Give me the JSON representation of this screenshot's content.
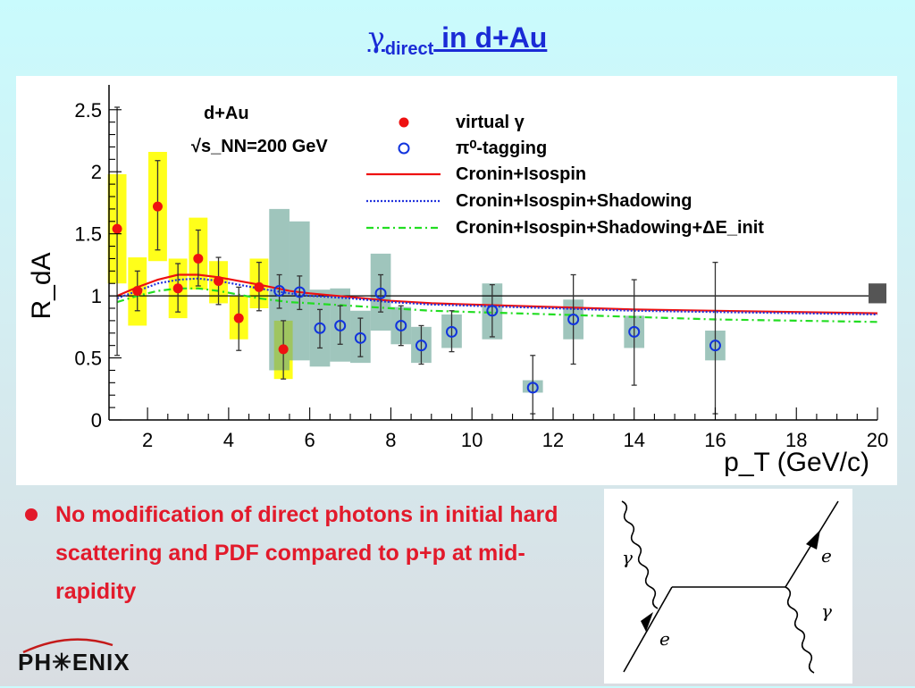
{
  "title": {
    "gamma": "γ",
    "sub": "direct",
    "rest": " in d+Au"
  },
  "bullet": {
    "text": "No modification of direct photons in initial hard scattering and PDF compared to p+p at mid-rapidity"
  },
  "logo": {
    "text": "PH✳ENIX"
  },
  "feynman": {
    "labels": [
      "γ",
      "e",
      "e",
      "γ"
    ]
  },
  "colors": {
    "title": "#1a2bd6",
    "bullet": "#e21a2b",
    "virtual": "#ee1111",
    "pi0": "#1133dd",
    "yellow_box": "#ffff1a",
    "teal_box": "#5f9f8f"
  },
  "chart_data": {
    "type": "scatter",
    "xlim": [
      1,
      20
    ],
    "ylim": [
      0,
      2.7
    ],
    "x_ticks": [
      2,
      4,
      6,
      8,
      10,
      12,
      14,
      16,
      18,
      20
    ],
    "y_ticks": [
      0,
      0.5,
      1,
      1.5,
      2,
      2.5
    ],
    "x_tick_labels": [
      "2",
      "4",
      "6",
      "8",
      "10",
      "12",
      "14",
      "16",
      "18",
      "20"
    ],
    "y_tick_labels": [
      "0",
      "0.5",
      "1",
      "1.5",
      "2",
      "2.5"
    ],
    "xlabel": "p_T (GeV/c)",
    "ylabel": "R_dA",
    "annotation": {
      "line1": "d+Au",
      "line2": "√s_NN=200 GeV"
    },
    "legend": {
      "virtual": "virtual γ",
      "pi0": "π⁰-tagging",
      "cronin": "Cronin+Isospin",
      "shadow": "Cronin+Isospin+Shadowing",
      "eloss": "Cronin+Isospin+Shadowing+ΔE_init"
    },
    "reference_line": 1.0,
    "series": [
      {
        "name": "virtual γ",
        "marker": "filled-circle",
        "points": [
          {
            "x": 1.25,
            "y": 1.54,
            "stat": [
              0.52,
              2.52
            ],
            "sys": [
              1.1,
              1.98
            ]
          },
          {
            "x": 1.75,
            "y": 1.04,
            "stat": [
              0.88,
              1.2
            ],
            "sys": [
              0.76,
              1.31
            ]
          },
          {
            "x": 2.25,
            "y": 1.72,
            "stat": [
              1.37,
              2.09
            ],
            "sys": [
              1.28,
              2.16
            ]
          },
          {
            "x": 2.75,
            "y": 1.06,
            "stat": [
              0.87,
              1.26
            ],
            "sys": [
              0.82,
              1.3
            ]
          },
          {
            "x": 3.25,
            "y": 1.3,
            "stat": [
              1.08,
              1.53
            ],
            "sys": [
              1.05,
              1.63
            ]
          },
          {
            "x": 3.75,
            "y": 1.12,
            "stat": [
              0.93,
              1.31
            ],
            "sys": [
              0.94,
              1.28
            ]
          },
          {
            "x": 4.25,
            "y": 0.82,
            "stat": [
              0.56,
              1.07
            ],
            "sys": [
              0.65,
              1.0
            ]
          },
          {
            "x": 4.75,
            "y": 1.07,
            "stat": [
              0.88,
              1.27
            ],
            "sys": [
              0.9,
              1.3
            ]
          },
          {
            "x": 5.35,
            "y": 0.57,
            "stat": [
              0.33,
              0.8
            ],
            "sys": [
              0.33,
              0.8
            ]
          }
        ]
      },
      {
        "name": "π⁰-tagging",
        "marker": "open-circle",
        "points": [
          {
            "x": 5.25,
            "y": 1.04,
            "stat": [
              0.9,
              1.17
            ],
            "sys": [
              0.4,
              1.7
            ]
          },
          {
            "x": 5.75,
            "y": 1.03,
            "stat": [
              0.89,
              1.16
            ],
            "sys": [
              0.48,
              1.6
            ]
          },
          {
            "x": 6.25,
            "y": 0.74,
            "stat": [
              0.58,
              0.89
            ],
            "sys": [
              0.43,
              1.05
            ]
          },
          {
            "x": 6.75,
            "y": 0.76,
            "stat": [
              0.61,
              0.92
            ],
            "sys": [
              0.47,
              1.06
            ]
          },
          {
            "x": 7.25,
            "y": 0.66,
            "stat": [
              0.51,
              0.82
            ],
            "sys": [
              0.46,
              0.88
            ]
          },
          {
            "x": 7.75,
            "y": 1.02,
            "stat": [
              0.87,
              1.17
            ],
            "sys": [
              0.72,
              1.34
            ]
          },
          {
            "x": 8.25,
            "y": 0.76,
            "stat": [
              0.6,
              0.92
            ],
            "sys": [
              0.61,
              0.91
            ]
          },
          {
            "x": 8.75,
            "y": 0.6,
            "stat": [
              0.45,
              0.76
            ],
            "sys": [
              0.46,
              0.75
            ]
          },
          {
            "x": 9.5,
            "y": 0.71,
            "stat": [
              0.55,
              0.88
            ],
            "sys": [
              0.58,
              0.85
            ]
          },
          {
            "x": 10.5,
            "y": 0.88,
            "stat": [
              0.67,
              1.09
            ],
            "sys": [
              0.65,
              1.1
            ]
          },
          {
            "x": 11.5,
            "y": 0.26,
            "stat": [
              0.05,
              0.52
            ],
            "sys": [
              0.22,
              0.32
            ]
          },
          {
            "x": 12.5,
            "y": 0.81,
            "stat": [
              0.45,
              1.17
            ],
            "sys": [
              0.65,
              0.97
            ]
          },
          {
            "x": 14.0,
            "y": 0.71,
            "stat": [
              0.28,
              1.13
            ],
            "sys": [
              0.58,
              0.84
            ]
          },
          {
            "x": 16.0,
            "y": 0.6,
            "stat": [
              0.05,
              1.27
            ],
            "sys": [
              0.48,
              0.72
            ]
          }
        ]
      }
    ],
    "curves": [
      {
        "name": "Cronin+Isospin",
        "color": "#ee1111",
        "style": "solid",
        "x": [
          1.25,
          1.75,
          2.25,
          2.75,
          3.25,
          3.75,
          4.25,
          4.75,
          5.5,
          6,
          7,
          8,
          9,
          10,
          12,
          14,
          16,
          18,
          20
        ],
        "y": [
          1.0,
          1.07,
          1.13,
          1.17,
          1.17,
          1.15,
          1.12,
          1.09,
          1.04,
          1.02,
          0.99,
          0.96,
          0.94,
          0.93,
          0.91,
          0.89,
          0.88,
          0.87,
          0.86
        ]
      },
      {
        "name": "Cronin+Isospin+Shadowing",
        "color": "#2233dd",
        "style": "dotted",
        "x": [
          1.25,
          1.75,
          2.25,
          2.75,
          3.25,
          3.75,
          4.25,
          4.75,
          5.5,
          6,
          7,
          8,
          9,
          10,
          12,
          14,
          16,
          18,
          20
        ],
        "y": [
          0.98,
          1.04,
          1.1,
          1.13,
          1.14,
          1.12,
          1.09,
          1.06,
          1.02,
          1.0,
          0.98,
          0.95,
          0.93,
          0.92,
          0.9,
          0.88,
          0.87,
          0.86,
          0.85
        ]
      },
      {
        "name": "Cronin+Isospin+Shadowing+ΔE_init",
        "color": "#22dd22",
        "style": "dashdot",
        "x": [
          1.25,
          1.75,
          2.25,
          2.75,
          3.25,
          3.75,
          4.25,
          4.75,
          5.5,
          6,
          7,
          8,
          9,
          10,
          12,
          14,
          16,
          18,
          20
        ],
        "y": [
          0.95,
          1.0,
          1.04,
          1.06,
          1.06,
          1.04,
          1.01,
          0.98,
          0.95,
          0.94,
          0.92,
          0.9,
          0.88,
          0.87,
          0.85,
          0.83,
          0.81,
          0.8,
          0.79
        ]
      }
    ],
    "normalization_box": {
      "x": 20,
      "y_low": 0.94,
      "y_high": 1.1
    },
    "grid": false,
    "legend_position": "top-right"
  }
}
